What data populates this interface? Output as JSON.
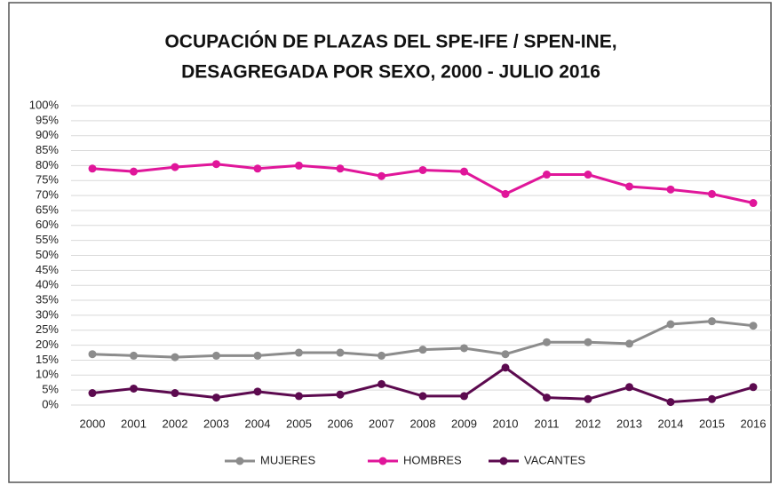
{
  "chart_data": {
    "type": "line",
    "title": [
      "OCUPACIÓN DE PLAZAS DEL SPE-IFE / SPEN-INE,",
      "DESAGREGADA POR SEXO, 2000 - JULIO 2016"
    ],
    "categories": [
      "2000",
      "2001",
      "2002",
      "2003",
      "2004",
      "2005",
      "2006",
      "2007",
      "2008",
      "2009",
      "2010",
      "2011",
      "2012",
      "2013",
      "2014",
      "2015",
      "2016"
    ],
    "series": [
      {
        "name": "MUJERES",
        "color": "#8c8c8c",
        "values": [
          17,
          16.5,
          16,
          16.5,
          16.5,
          17.5,
          17.5,
          16.5,
          18.5,
          19,
          17,
          21,
          21,
          20.5,
          27,
          28,
          26.5
        ]
      },
      {
        "name": "HOMBRES",
        "color": "#e0169a",
        "values": [
          79,
          78,
          79.5,
          80.5,
          79,
          80,
          79,
          76.5,
          78.5,
          78,
          70.5,
          77,
          77,
          73,
          72,
          70.5,
          67.5
        ]
      },
      {
        "name": "VACANTES",
        "color": "#5c0a4f",
        "values": [
          4,
          5.5,
          4,
          2.5,
          4.5,
          3,
          3.5,
          7,
          3,
          3,
          12.5,
          2.5,
          2,
          6,
          1,
          2,
          6
        ]
      }
    ],
    "ylim": [
      0,
      100
    ],
    "yticks": [
      {
        "value": 0,
        "label": "0%"
      },
      {
        "value": 5,
        "label": "5%"
      },
      {
        "value": 10,
        "label": "10%"
      },
      {
        "value": 15,
        "label": "15%"
      },
      {
        "value": 20,
        "label": "20%"
      },
      {
        "value": 25,
        "label": "25%"
      },
      {
        "value": 30,
        "label": "30%"
      },
      {
        "value": 35,
        "label": "35%"
      },
      {
        "value": 40,
        "label": "40%"
      },
      {
        "value": 45,
        "label": "45%"
      },
      {
        "value": 50,
        "label": "50%"
      },
      {
        "value": 55,
        "label": "55%"
      },
      {
        "value": 60,
        "label": "60%"
      },
      {
        "value": 65,
        "label": "65%"
      },
      {
        "value": 70,
        "label": "70%"
      },
      {
        "value": 75,
        "label": "75%"
      },
      {
        "value": 80,
        "label": "80%"
      },
      {
        "value": 85,
        "label": "85%"
      },
      {
        "value": 90,
        "label": "90%"
      },
      {
        "value": 95,
        "label": "95%"
      },
      {
        "value": 100,
        "label": "100%"
      }
    ],
    "grid": true,
    "legend": "bottom"
  }
}
